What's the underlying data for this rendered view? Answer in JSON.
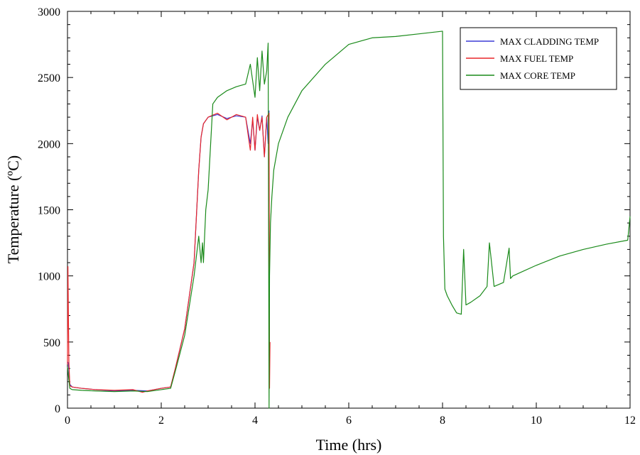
{
  "chart_data": {
    "type": "line",
    "xlabel": "Time (hrs)",
    "ylabel": "Temperature (ºC)",
    "xlim": [
      0,
      12
    ],
    "ylim": [
      0,
      3000
    ],
    "x_ticks": [
      0,
      2,
      4,
      6,
      8,
      10,
      12
    ],
    "x_tick_labels": [
      "0",
      "2",
      "4",
      "6",
      "8",
      "10",
      "12"
    ],
    "y_ticks": [
      0,
      500,
      1000,
      1500,
      2000,
      2500,
      3000
    ],
    "y_tick_labels": [
      "0",
      "500",
      "1000",
      "1500",
      "2000",
      "2500",
      "3000"
    ],
    "grid": false,
    "legend_position": "top-right",
    "series": [
      {
        "name": "MAX CLADDING TEMP",
        "color": "#3b3bd6",
        "x": [
          0,
          0.02,
          0.05,
          0.1,
          0.3,
          0.6,
          1.0,
          1.4,
          1.7,
          2.0,
          2.2,
          2.3,
          2.5,
          2.7,
          2.8,
          2.85,
          2.9,
          3.0,
          3.2,
          3.4,
          3.6,
          3.8,
          3.9,
          3.95,
          4.0,
          4.05,
          4.1,
          4.15,
          4.2,
          4.25,
          4.28,
          4.3
        ],
        "y": [
          350,
          340,
          180,
          160,
          150,
          140,
          130,
          135,
          130,
          150,
          160,
          300,
          600,
          1100,
          1800,
          2050,
          2150,
          2200,
          2220,
          2190,
          2210,
          2200,
          2000,
          2180,
          1950,
          2200,
          2100,
          2210,
          1900,
          2200,
          2000,
          2250
        ]
      },
      {
        "name": "MAX FUEL TEMP",
        "color": "#e8262a",
        "x": [
          0,
          0.01,
          0.02,
          0.03,
          0.05,
          0.1,
          0.3,
          0.6,
          1.0,
          1.4,
          1.6,
          1.7,
          2.0,
          2.2,
          2.3,
          2.5,
          2.7,
          2.8,
          2.85,
          2.9,
          3.0,
          3.2,
          3.4,
          3.6,
          3.8,
          3.9,
          3.95,
          4.0,
          4.05,
          4.1,
          4.15,
          4.2,
          4.25,
          4.3,
          4.31,
          4.32
        ],
        "y": [
          330,
          1070,
          700,
          350,
          170,
          160,
          150,
          140,
          135,
          140,
          120,
          130,
          150,
          160,
          300,
          600,
          1100,
          1800,
          2050,
          2150,
          2200,
          2230,
          2180,
          2220,
          2200,
          1950,
          2200,
          1950,
          2220,
          2100,
          2200,
          1900,
          2200,
          2230,
          150,
          500
        ]
      },
      {
        "name": "MAX CORE TEMP",
        "color": "#1a8a1a",
        "x": [
          0,
          0.05,
          0.1,
          0.3,
          0.6,
          1.0,
          1.4,
          1.7,
          2.0,
          2.2,
          2.3,
          2.5,
          2.7,
          2.8,
          2.85,
          2.88,
          2.9,
          2.95,
          3.0,
          3.1,
          3.2,
          3.4,
          3.6,
          3.8,
          3.9,
          4.0,
          4.05,
          4.1,
          4.15,
          4.2,
          4.25,
          4.28,
          4.3,
          4.31,
          4.33,
          4.36,
          4.4,
          4.5,
          4.7,
          5.0,
          5.5,
          6.0,
          6.5,
          7.0,
          7.5,
          8.0,
          8.02,
          8.05,
          8.1,
          8.2,
          8.3,
          8.4,
          8.45,
          8.5,
          8.6,
          8.8,
          8.95,
          9.0,
          9.1,
          9.3,
          9.42,
          9.45,
          9.5,
          10.0,
          10.5,
          11.0,
          11.5,
          11.95,
          12.0
        ],
        "y": [
          310,
          150,
          140,
          135,
          130,
          125,
          130,
          125,
          140,
          150,
          280,
          550,
          1000,
          1300,
          1100,
          1250,
          1100,
          1500,
          1650,
          2300,
          2350,
          2400,
          2430,
          2450,
          2600,
          2350,
          2650,
          2400,
          2700,
          2450,
          2550,
          2760,
          0,
          1000,
          1400,
          1600,
          1800,
          2000,
          2200,
          2400,
          2600,
          2750,
          2800,
          2810,
          2830,
          2850,
          1300,
          900,
          850,
          780,
          720,
          710,
          1200,
          780,
          800,
          850,
          920,
          1250,
          920,
          950,
          1210,
          980,
          1000,
          1080,
          1150,
          1200,
          1240,
          1270,
          1450
        ]
      }
    ]
  }
}
